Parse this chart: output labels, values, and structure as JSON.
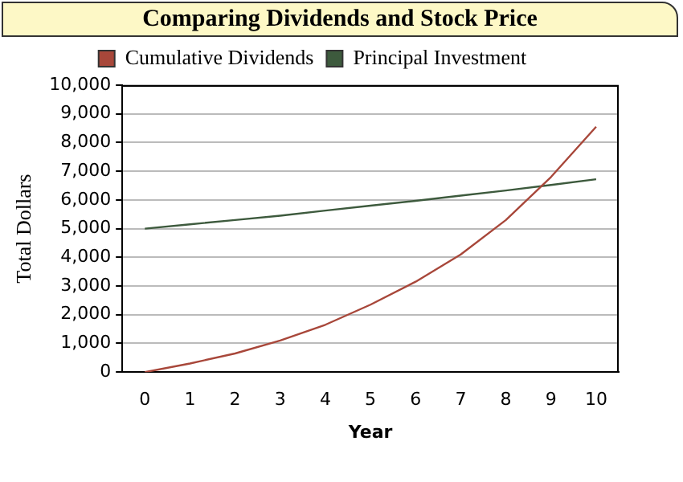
{
  "chart_data": {
    "type": "line",
    "title": "Comparing Dividends and Stock Price",
    "xlabel": "Year",
    "ylabel": "Total Dollars",
    "categories": [
      "0",
      "1",
      "2",
      "3",
      "4",
      "5",
      "6",
      "7",
      "8",
      "9",
      "10"
    ],
    "series": [
      {
        "name": "Cumulative Dividends",
        "color": "#a8473a",
        "values": [
          0,
          300,
          650,
          1100,
          1650,
          2350,
          3150,
          4100,
          5300,
          6800,
          8550
        ]
      },
      {
        "name": "Principal Investment",
        "color": "#3d5a3d",
        "values": [
          5000,
          5150,
          5300,
          5450,
          5630,
          5800,
          5970,
          6150,
          6330,
          6520,
          6720
        ]
      }
    ],
    "ylim": [
      0,
      10000
    ],
    "yticks": [
      0,
      {
        "value": 1000,
        "label": "1,000"
      },
      {
        "value": 2000,
        "label": "2,000"
      },
      {
        "value": 3000,
        "label": "3,000"
      },
      {
        "value": 4000,
        "label": "4,000"
      },
      {
        "value": 5000,
        "label": "5,000"
      },
      {
        "value": 6000,
        "label": "6,000"
      },
      {
        "value": 7000,
        "label": "7,000"
      },
      {
        "value": 8000,
        "label": "8,000"
      },
      {
        "value": 9000,
        "label": "9,000"
      },
      {
        "value": 10000,
        "label": "10,000"
      }
    ],
    "grid": "y",
    "legend": "top",
    "marker": "none",
    "line_style": "solid"
  }
}
